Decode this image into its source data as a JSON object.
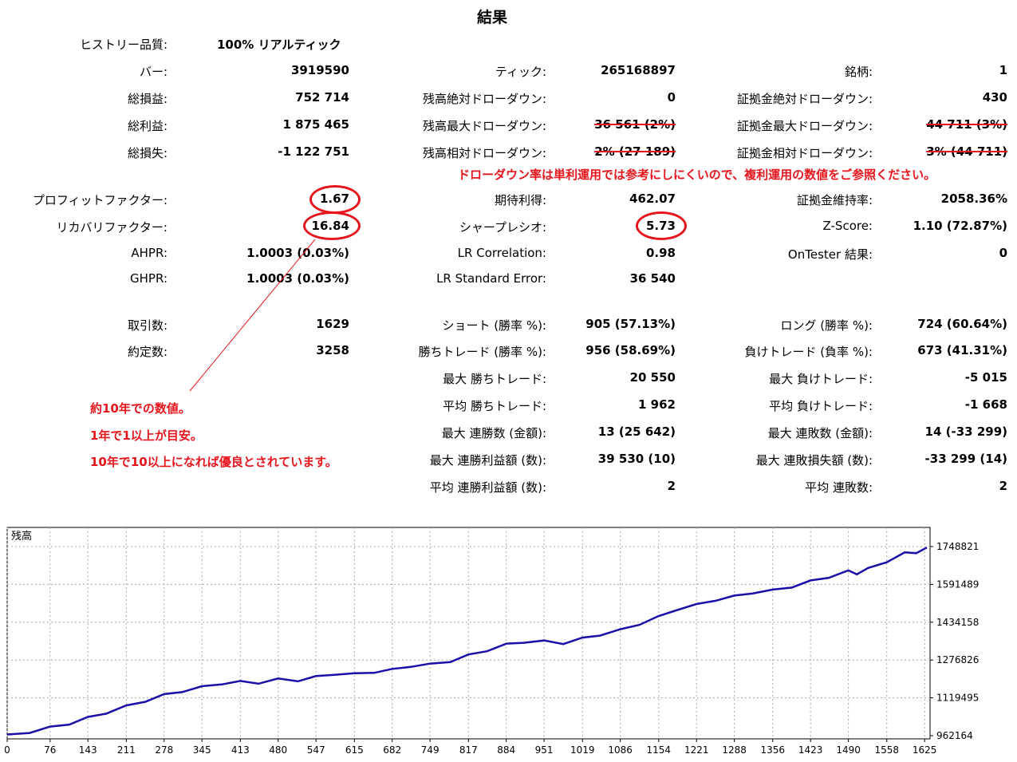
{
  "title": "結果",
  "history_quality": {
    "label": "ヒストリー品質:",
    "value": "100% リアルティック"
  },
  "col1": [
    {
      "label": "バー:",
      "value": "3919590"
    },
    {
      "label": "総損益:",
      "value": "752 714"
    },
    {
      "label": "総利益:",
      "value": "1 875 465"
    },
    {
      "label": "総損失:",
      "value": "-1 122 751"
    },
    {
      "label": "プロフィットファクター:",
      "value": "1.67"
    },
    {
      "label": "リカバリファクター:",
      "value": "16.84"
    },
    {
      "label": "AHPR:",
      "value": "1.0003 (0.03%)"
    },
    {
      "label": "GHPR:",
      "value": "1.0003 (0.03%)"
    },
    {
      "label": "取引数:",
      "value": "1629"
    },
    {
      "label": "約定数:",
      "value": "3258"
    }
  ],
  "col2": [
    {
      "label": "ティック:",
      "value": "265168897"
    },
    {
      "label": "残高絶対ドローダウン:",
      "value": "0"
    },
    {
      "label": "残高最大ドローダウン:",
      "value": "36 561 (2%)"
    },
    {
      "label": "残高相対ドローダウン:",
      "value": "2% (27 189)"
    },
    {
      "label": "期待利得:",
      "value": "462.07"
    },
    {
      "label": "シャープレシオ:",
      "value": "5.73"
    },
    {
      "label": "LR Correlation:",
      "value": "0.98"
    },
    {
      "label": "LR Standard Error:",
      "value": "36 540"
    },
    {
      "label": "ショート (勝率 %):",
      "value": "905 (57.13%)"
    },
    {
      "label": "勝ちトレード (勝率 %):",
      "value": "956 (58.69%)"
    },
    {
      "label": "最大 勝ちトレード:",
      "value": "20 550"
    },
    {
      "label": "平均 勝ちトレード:",
      "value": "1 962"
    },
    {
      "label": "最大 連勝数 (金額):",
      "value": "13 (25 642)"
    },
    {
      "label": "最大 連勝利益額 (数):",
      "value": "39 530 (10)"
    },
    {
      "label": "平均 連勝利益額 (数):",
      "value": "2"
    }
  ],
  "col3": [
    {
      "label": "銘柄:",
      "value": "1"
    },
    {
      "label": "証拠金絶対ドローダウン:",
      "value": "430"
    },
    {
      "label": "証拠金最大ドローダウン:",
      "value": "44 711 (3%)"
    },
    {
      "label": "証拠金相対ドローダウン:",
      "value": "3% (44 711)"
    },
    {
      "label": "証拠金維持率:",
      "value": "2058.36%"
    },
    {
      "label": "Z-Score:",
      "value": "1.10 (72.87%)"
    },
    {
      "label": "OnTester 結果:",
      "value": "0"
    },
    {
      "label": "ロング (勝率 %):",
      "value": "724 (60.64%)"
    },
    {
      "label": "負けトレード (負率 %):",
      "value": "673 (41.31%)"
    },
    {
      "label": "最大 負けトレード:",
      "value": "-5 015"
    },
    {
      "label": "平均 負けトレード:",
      "value": "-1 668"
    },
    {
      "label": "最大 連敗数 (金額):",
      "value": "14 (-33 299)"
    },
    {
      "label": "最大 連敗損失額 (数):",
      "value": "-33 299 (14)"
    },
    {
      "label": "平均 連敗数:",
      "value": "2"
    }
  ],
  "annotations": {
    "drawdown_note": "ドローダウン率は単利運用では参考にしにくいので、複利運用の数値をご参照ください。",
    "note_line1": "約10年での数値。",
    "note_line2": "1年で1以上が目安。",
    "note_line3": "10年で10以上になれば優良とされています。",
    "accent_color": "#e8141c"
  },
  "chart_data": {
    "type": "line",
    "title": "残高",
    "line_color": "#1a0fa8",
    "grid": true,
    "y_ticks": [
      "1748821",
      "1591489",
      "1434158",
      "1276826",
      "1119495",
      "962164"
    ],
    "y_tick_values": [
      1748821,
      1591489,
      1434158,
      1276826,
      1119495,
      962164
    ],
    "x_ticks": [
      "0",
      "76",
      "143",
      "211",
      "278",
      "345",
      "413",
      "480",
      "547",
      "615",
      "682",
      "749",
      "817",
      "884",
      "951",
      "1019",
      "1086",
      "1154",
      "1221",
      "1288",
      "1356",
      "1423",
      "1490",
      "1558",
      "1625"
    ],
    "xlim": [
      0,
      1629
    ],
    "ylim": [
      962164,
      1748821
    ],
    "series": [
      {
        "x": [
          0,
          40,
          76,
          110,
          143,
          175,
          211,
          245,
          278,
          310,
          345,
          380,
          413,
          445,
          480,
          515,
          547,
          580,
          615,
          650,
          682,
          715,
          749,
          785,
          817,
          850,
          884,
          915,
          951,
          985,
          1019,
          1050,
          1086,
          1120,
          1154,
          1185,
          1221,
          1255,
          1288,
          1320,
          1356,
          1390,
          1423,
          1455,
          1490,
          1505,
          1525,
          1558,
          1590,
          1610,
          1629
        ],
        "y": [
          967000,
          980000,
          1000000,
          1015000,
          1040000,
          1060000,
          1088000,
          1110000,
          1135000,
          1150000,
          1168000,
          1182000,
          1190000,
          1185000,
          1200000,
          1195000,
          1210000,
          1222000,
          1222000,
          1230000,
          1240000,
          1255000,
          1262000,
          1275000,
          1300000,
          1320000,
          1345000,
          1355000,
          1358000,
          1350000,
          1370000,
          1385000,
          1405000,
          1430000,
          1460000,
          1490000,
          1510000,
          1530000,
          1545000,
          1560000,
          1570000,
          1585000,
          1608000,
          1625000,
          1650000,
          1640000,
          1660000,
          1690000,
          1725000,
          1728000,
          1745000
        ]
      }
    ]
  }
}
